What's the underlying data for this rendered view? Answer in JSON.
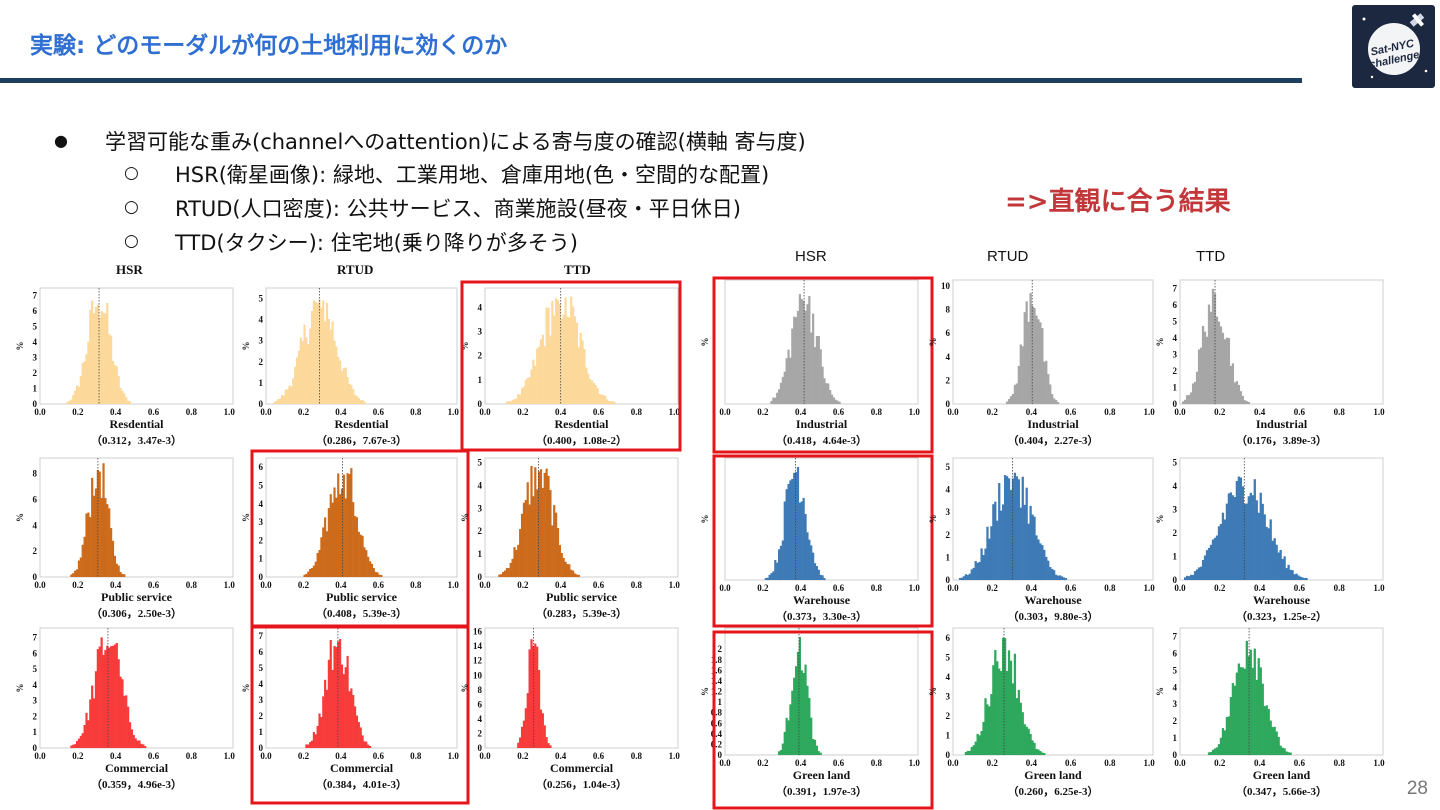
{
  "header": {
    "title": "実験: どのモーダルが何の土地利用に効くのか",
    "logo_text_line1": "Sat-NYC",
    "logo_text_line2": "challenge"
  },
  "bullets": {
    "main": "学習可能な重み(channelへのattention)による寄与度の確認(横軸 寄与度)",
    "sub": [
      "HSR(衛星画像): 緑地、工業用地、倉庫用地(色・空間的な配置)",
      "RTUD(人口密度): 公共サービス、商業施設(昼夜・平日休日)",
      "TTD(タクシー): 住宅地(乗り降りが多そう)"
    ]
  },
  "note": "=>直観に合う結果",
  "page_number": "28",
  "left_panel": {
    "columns": [
      "HSR",
      "RTUD",
      "TTD"
    ]
  },
  "right_panel": {
    "columns": [
      "HSR",
      "RTUD",
      "TTD"
    ]
  },
  "chart_data": [
    {
      "type": "bar",
      "panel": "left",
      "row": 0,
      "col": 0,
      "label": "Resdential",
      "stats": "（0.312，3.47e-3）",
      "mean": 0.312,
      "ylabel": "%",
      "ymax": 7.5,
      "yticks": [
        0,
        1,
        2,
        3,
        4,
        5,
        6,
        7
      ],
      "xticks": [
        0.0,
        0.2,
        0.4,
        0.6,
        0.8,
        1.0
      ],
      "xticklabels": [
        "0.0",
        "0.2",
        "0.4",
        "0.6",
        "0.8",
        "1.0"
      ],
      "color": "#fcd99b",
      "dist": {
        "mu": 0.312,
        "sd": 0.06,
        "max": 7.0
      },
      "highlight": false
    },
    {
      "type": "bar",
      "panel": "left",
      "row": 0,
      "col": 1,
      "label": "Resdential",
      "stats": "（0.286，7.67e-3）",
      "mean": 0.286,
      "ylabel": "%",
      "ymax": 5.5,
      "yticks": [
        0,
        1,
        2,
        3,
        4,
        5
      ],
      "xticks": [
        0.0,
        0.2,
        0.4,
        0.6,
        0.8,
        1.0
      ],
      "xticklabels": [
        "0.0",
        "0.2",
        "0.4",
        "0.6",
        "0.8",
        "1.0"
      ],
      "color": "#fcd99b",
      "dist": {
        "mu": 0.286,
        "sd": 0.088,
        "max": 5.0
      },
      "highlight": false
    },
    {
      "type": "bar",
      "panel": "left",
      "row": 0,
      "col": 2,
      "label": "Resdential",
      "stats": "（0.400，1.08e-2）",
      "mean": 0.4,
      "ylabel": "%",
      "ymax": 4.8,
      "yticks": [
        0,
        1,
        2,
        3,
        4
      ],
      "xticks": [
        0.0,
        0.2,
        0.4,
        0.6,
        0.8,
        1.0
      ],
      "xticklabels": [
        "0.0",
        "0.2",
        "0.4",
        "0.6",
        "0.8",
        "1.0"
      ],
      "color": "#fcd99b",
      "dist": {
        "mu": 0.4,
        "sd": 0.1,
        "max": 4.5
      },
      "highlight": true
    },
    {
      "type": "bar",
      "panel": "left",
      "row": 1,
      "col": 0,
      "label": "Public service",
      "stats": "（0.306，2.50e-3）",
      "mean": 0.306,
      "ylabel": "%",
      "ymax": 9.2,
      "yticks": [
        0,
        2,
        4,
        6,
        8
      ],
      "xticks": [
        0.0,
        0.2,
        0.4,
        0.6,
        0.8,
        1.0
      ],
      "xticklabels": [
        "0.0",
        "0.2",
        "0.4",
        "0.6",
        "0.8",
        "1.0"
      ],
      "color": "#cd6b1c",
      "dist": {
        "mu": 0.306,
        "sd": 0.05,
        "max": 8.8
      },
      "highlight": false
    },
    {
      "type": "bar",
      "panel": "left",
      "row": 1,
      "col": 1,
      "label": "Public service",
      "stats": "（0.408，5.39e-3）",
      "mean": 0.408,
      "ylabel": "%",
      "ymax": 6.5,
      "yticks": [
        0,
        1,
        2,
        3,
        4,
        5,
        6
      ],
      "xticks": [
        0.0,
        0.2,
        0.4,
        0.6,
        0.8,
        1.0
      ],
      "xticklabels": [
        "0.0",
        "0.2",
        "0.4",
        "0.6",
        "0.8",
        "1.0"
      ],
      "color": "#cd6b1c",
      "dist": {
        "mu": 0.408,
        "sd": 0.073,
        "max": 6.1
      },
      "highlight": true
    },
    {
      "type": "bar",
      "panel": "left",
      "row": 1,
      "col": 2,
      "label": "Public service",
      "stats": "（0.283，5.39e-3）",
      "mean": 0.283,
      "ylabel": "%",
      "ymax": 5.2,
      "yticks": [
        0,
        1,
        2,
        3,
        4,
        5
      ],
      "xticks": [
        0.0,
        0.2,
        0.4,
        0.6,
        0.8,
        1.0
      ],
      "xticklabels": [
        "0.0",
        "0.2",
        "0.4",
        "0.6",
        "0.8",
        "1.0"
      ],
      "color": "#cd6b1c",
      "dist": {
        "mu": 0.283,
        "sd": 0.075,
        "max": 4.9
      },
      "highlight": false
    },
    {
      "type": "bar",
      "panel": "left",
      "row": 2,
      "col": 0,
      "label": "Commercial",
      "stats": "（0.359，4.96e-3）",
      "mean": 0.359,
      "ylabel": "%",
      "ymax": 7.6,
      "yticks": [
        0,
        1,
        2,
        3,
        4,
        5,
        6,
        7
      ],
      "xticks": [
        0.0,
        0.2,
        0.4,
        0.6,
        0.8,
        1.0
      ],
      "xticklabels": [
        "0.0",
        "0.2",
        "0.4",
        "0.6",
        "0.8",
        "1.0"
      ],
      "color": "#f73b3b",
      "dist": {
        "mu": 0.359,
        "sd": 0.07,
        "max": 7.1
      },
      "highlight": false
    },
    {
      "type": "bar",
      "panel": "left",
      "row": 2,
      "col": 1,
      "label": "Commercial",
      "stats": "（0.384，4.01e-3）",
      "mean": 0.384,
      "ylabel": "%",
      "ymax": 7.5,
      "yticks": [
        0,
        1,
        2,
        3,
        4,
        5,
        6,
        7
      ],
      "xticks": [
        0.0,
        0.2,
        0.4,
        0.6,
        0.8,
        1.0
      ],
      "xticklabels": [
        "0.0",
        "0.2",
        "0.4",
        "0.6",
        "0.8",
        "1.0"
      ],
      "color": "#f73b3b",
      "dist": {
        "mu": 0.384,
        "sd": 0.063,
        "max": 7.0
      },
      "highlight": true
    },
    {
      "type": "bar",
      "panel": "left",
      "row": 2,
      "col": 2,
      "label": "Commercial",
      "stats": "（0.256，1.04e-3）",
      "mean": 0.256,
      "ylabel": "%",
      "ymax": 16.5,
      "yticks": [
        0,
        2,
        4,
        6,
        8,
        10,
        12,
        14,
        16
      ],
      "xticks": [
        0.0,
        0.2,
        0.4,
        0.6,
        0.8,
        1.0
      ],
      "xticklabels": [
        "0.0",
        "0.2",
        "0.4",
        "0.6",
        "0.8",
        "1.0"
      ],
      "color": "#f73b3b",
      "dist": {
        "mu": 0.256,
        "sd": 0.032,
        "max": 15.2
      },
      "highlight": false
    },
    {
      "type": "bar",
      "panel": "right",
      "row": 0,
      "col": 0,
      "label": "Industrial",
      "stats": "（0.418，4.64e-3）",
      "mean": 0.418,
      "ylabel": "%",
      "ymax": 7.5,
      "yticks": [],
      "xticks": [
        0.0,
        0.2,
        0.4,
        0.6,
        0.8,
        1.0
      ],
      "xticklabels": [
        "0.0",
        "0.2",
        "0.4",
        "0.6",
        "0.8",
        "1.0"
      ],
      "color": "#a6a6a6",
      "dist": {
        "mu": 0.418,
        "sd": 0.066,
        "max": 6.9
      },
      "highlight": true
    },
    {
      "type": "bar",
      "panel": "right",
      "row": 0,
      "col": 1,
      "label": "Industrial",
      "stats": "（0.404，2.27e-3）",
      "mean": 0.404,
      "ylabel": "%",
      "ymax": 10.5,
      "yticks": [
        0,
        2,
        4,
        6,
        8,
        10
      ],
      "xticks": [
        0.0,
        0.2,
        0.4,
        0.6,
        0.8,
        1.0
      ],
      "xticklabels": [
        "0.0",
        "0.2",
        "0.4",
        "0.6",
        "0.8",
        "1.0"
      ],
      "color": "#a6a6a6",
      "dist": {
        "mu": 0.404,
        "sd": 0.046,
        "max": 10.0
      },
      "highlight": false
    },
    {
      "type": "bar",
      "panel": "right",
      "row": 0,
      "col": 2,
      "label": "Industrial",
      "stats": "（0.176，3.89e-3）",
      "mean": 0.176,
      "ylabel": "%",
      "ymax": 7.5,
      "yticks": [
        0,
        1,
        2,
        3,
        4,
        5,
        6,
        7
      ],
      "xticks": [
        0.0,
        0.2,
        0.4,
        0.6,
        0.8,
        1.0
      ],
      "xticklabels": [
        "0.0",
        "0.2",
        "0.4",
        "0.6",
        "0.8",
        "1.0"
      ],
      "color": "#a6a6a6",
      "dist": {
        "mu": 0.176,
        "sd": 0.06,
        "max": 7.0
      },
      "highlight": false
    },
    {
      "type": "bar",
      "panel": "right",
      "row": 1,
      "col": 0,
      "label": "Warehouse",
      "stats": "（0.373，3.30e-3）",
      "mean": 0.373,
      "ylabel": "%",
      "ymax": 9.0,
      "yticks": [],
      "xticks": [
        0.0,
        0.2,
        0.4,
        0.6,
        0.8,
        1.0
      ],
      "xticklabels": [
        "0.0",
        "0.2",
        "0.4",
        "0.6",
        "0.8",
        "1.0"
      ],
      "color": "#3e7bb6",
      "dist": {
        "mu": 0.373,
        "sd": 0.055,
        "max": 8.5
      },
      "highlight": true
    },
    {
      "type": "bar",
      "panel": "right",
      "row": 1,
      "col": 1,
      "label": "Warehouse",
      "stats": "（0.303，9.80e-3）",
      "mean": 0.303,
      "ylabel": "%",
      "ymax": 5.4,
      "yticks": [
        0,
        1,
        2,
        3,
        4,
        5
      ],
      "xticks": [
        0.0,
        0.2,
        0.4,
        0.6,
        0.8,
        1.0
      ],
      "xticklabels": [
        "0.0",
        "0.2",
        "0.4",
        "0.6",
        "0.8",
        "1.0"
      ],
      "color": "#3e7bb6",
      "dist": {
        "mu": 0.303,
        "sd": 0.095,
        "max": 4.9
      },
      "highlight": false
    },
    {
      "type": "bar",
      "panel": "right",
      "row": 1,
      "col": 2,
      "label": "Warehouse",
      "stats": "（0.323，1.25e-2）",
      "mean": 0.323,
      "ylabel": "%",
      "ymax": 5.2,
      "yticks": [
        0,
        1,
        2,
        3,
        4,
        5
      ],
      "xticks": [
        0.0,
        0.2,
        0.4,
        0.6,
        0.8,
        1.0
      ],
      "xticklabels": [
        "0.0",
        "0.2",
        "0.4",
        "0.6",
        "0.8",
        "1.0"
      ],
      "color": "#3e7bb6",
      "dist": {
        "mu": 0.323,
        "sd": 0.11,
        "max": 4.5
      },
      "highlight": false
    },
    {
      "type": "bar",
      "panel": "right",
      "row": 2,
      "col": 0,
      "label": "Green land",
      "stats": "（0.391，1.97e-3）",
      "mean": 0.391,
      "ylabel": "%",
      "ymax": 2.4,
      "yticks": [
        0,
        0.2,
        0.4,
        0.6,
        0.8,
        1,
        1.2,
        1.4,
        1.6,
        1.8,
        2
      ],
      "xticks": [
        0.0,
        0.2,
        0.4,
        0.6,
        0.8,
        1.0
      ],
      "xticklabels": [
        "0.0",
        "0.2",
        "0.4",
        "0.6",
        "0.8",
        "1.0"
      ],
      "color": "#2ea85c",
      "dist": {
        "mu": 0.391,
        "sd": 0.04,
        "max": 2.3
      },
      "highlight": true
    },
    {
      "type": "bar",
      "panel": "right",
      "row": 2,
      "col": 1,
      "label": "Green land",
      "stats": "（0.260，6.25e-3）",
      "mean": 0.26,
      "ylabel": "%",
      "ymax": 6.5,
      "yticks": [
        0,
        1,
        2,
        3,
        4,
        5,
        6
      ],
      "xticks": [
        0.0,
        0.2,
        0.4,
        0.6,
        0.8,
        1.0
      ],
      "xticklabels": [
        "0.0",
        "0.2",
        "0.4",
        "0.6",
        "0.8",
        "1.0"
      ],
      "color": "#2ea85c",
      "dist": {
        "mu": 0.26,
        "sd": 0.07,
        "max": 6.1
      },
      "highlight": false
    },
    {
      "type": "bar",
      "panel": "right",
      "row": 2,
      "col": 2,
      "label": "Green land",
      "stats": "（0.347，5.66e-3）",
      "mean": 0.347,
      "ylabel": "%",
      "ymax": 7.5,
      "yticks": [
        0,
        1,
        2,
        3,
        4,
        5,
        6,
        7
      ],
      "xticks": [
        0.0,
        0.2,
        0.4,
        0.6,
        0.8,
        1.0
      ],
      "xticklabels": [
        "0.0",
        "0.2",
        "0.4",
        "0.6",
        "0.8",
        "1.0"
      ],
      "color": "#2ea85c",
      "dist": {
        "mu": 0.347,
        "sd": 0.073,
        "max": 7.0
      },
      "highlight": false
    }
  ]
}
